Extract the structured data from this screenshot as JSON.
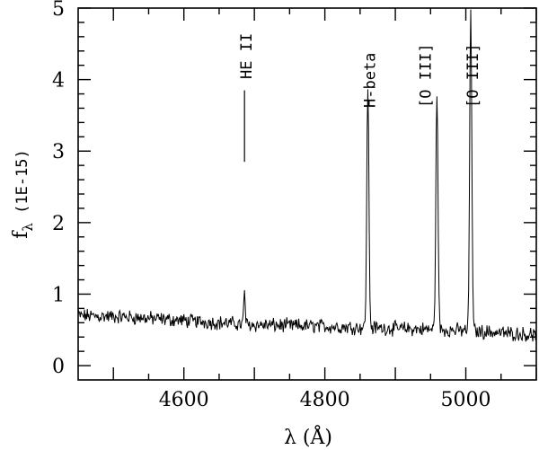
{
  "chart_data": {
    "type": "line",
    "title": "",
    "xlabel": "λ (Å)",
    "ylabel": "fλ (1E-15)",
    "xlim": [
      4450,
      5100
    ],
    "ylim": [
      -0.2,
      5
    ],
    "xticks": [
      4600,
      4800,
      5000
    ],
    "xtick_labels": [
      "4600",
      "4800",
      "5000"
    ],
    "yticks": [
      0,
      1,
      2,
      3,
      4,
      5
    ],
    "ytick_labels": [
      "0",
      "1",
      "2",
      "3",
      "4",
      "5"
    ],
    "grid": false,
    "series": [
      {
        "continuum": [
          [
            4450,
            0.7
          ],
          [
            4520,
            0.68
          ],
          [
            4600,
            0.63
          ],
          [
            4700,
            0.57
          ],
          [
            4800,
            0.55
          ],
          [
            4900,
            0.52
          ],
          [
            5000,
            0.49
          ],
          [
            5100,
            0.43
          ]
        ],
        "lines": [
          {
            "x": 4686,
            "peak": 1.05,
            "sigma": 1.0
          },
          {
            "x": 4861,
            "peak": 3.9,
            "sigma": 1.5
          },
          {
            "x": 4959,
            "peak": 3.85,
            "sigma": 1.5
          },
          {
            "x": 5007,
            "peak": 5.0,
            "sigma": 1.5
          }
        ]
      }
    ],
    "annotations": [
      {
        "text": "HE II",
        "x": 4686
      },
      {
        "text": "H-beta",
        "x": 4861
      },
      {
        "text": "[O III]",
        "x": 4959
      },
      {
        "text": "[O III]",
        "x": 5007
      }
    ],
    "marker_line": {
      "x": 4686,
      "y1": 2.85,
      "y2": 3.85
    }
  }
}
